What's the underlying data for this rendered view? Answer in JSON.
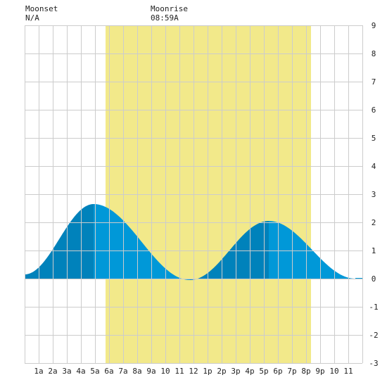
{
  "header": {
    "moonset_label": "Moonset",
    "moonset_value": "N/A",
    "moonrise_label": "Moonrise",
    "moonrise_value": "08:59A"
  },
  "colors": {
    "daylight": "#f2e98a",
    "tide_rising": "#0082bb",
    "tide_falling": "#0098d8",
    "grid": "#cccccc",
    "axis_text": "#222222",
    "background": "#ffffff"
  },
  "chart_data": {
    "type": "area",
    "x_unit": "hour of day",
    "xlim": [
      0,
      24
    ],
    "ylim": [
      -3,
      9
    ],
    "x_ticks": [
      {
        "hour": 1,
        "label": "1a"
      },
      {
        "hour": 2,
        "label": "2a"
      },
      {
        "hour": 3,
        "label": "3a"
      },
      {
        "hour": 4,
        "label": "4a"
      },
      {
        "hour": 5,
        "label": "5a"
      },
      {
        "hour": 6,
        "label": "6a"
      },
      {
        "hour": 7,
        "label": "7a"
      },
      {
        "hour": 8,
        "label": "8a"
      },
      {
        "hour": 9,
        "label": "9a"
      },
      {
        "hour": 10,
        "label": "10"
      },
      {
        "hour": 11,
        "label": "11"
      },
      {
        "hour": 12,
        "label": "12"
      },
      {
        "hour": 13,
        "label": "1p"
      },
      {
        "hour": 14,
        "label": "2p"
      },
      {
        "hour": 15,
        "label": "3p"
      },
      {
        "hour": 16,
        "label": "4p"
      },
      {
        "hour": 17,
        "label": "5p"
      },
      {
        "hour": 18,
        "label": "6p"
      },
      {
        "hour": 19,
        "label": "7p"
      },
      {
        "hour": 20,
        "label": "8p"
      },
      {
        "hour": 21,
        "label": "9p"
      },
      {
        "hour": 22,
        "label": "10"
      },
      {
        "hour": 23,
        "label": "11"
      }
    ],
    "y_ticks": [
      9,
      8,
      7,
      6,
      5,
      4,
      3,
      2,
      1,
      0,
      -1,
      -2,
      -3
    ],
    "daylight": {
      "start_hour": 5.75,
      "end_hour": 20.35
    },
    "tide_extremes": [
      {
        "hour": 0.0,
        "value": 0.15
      },
      {
        "hour": 4.9,
        "value": 2.65
      },
      {
        "hour": 11.75,
        "value": -0.05
      },
      {
        "hour": 17.35,
        "value": 2.05
      },
      {
        "hour": 23.5,
        "value": 0.0
      }
    ],
    "grid": true
  }
}
